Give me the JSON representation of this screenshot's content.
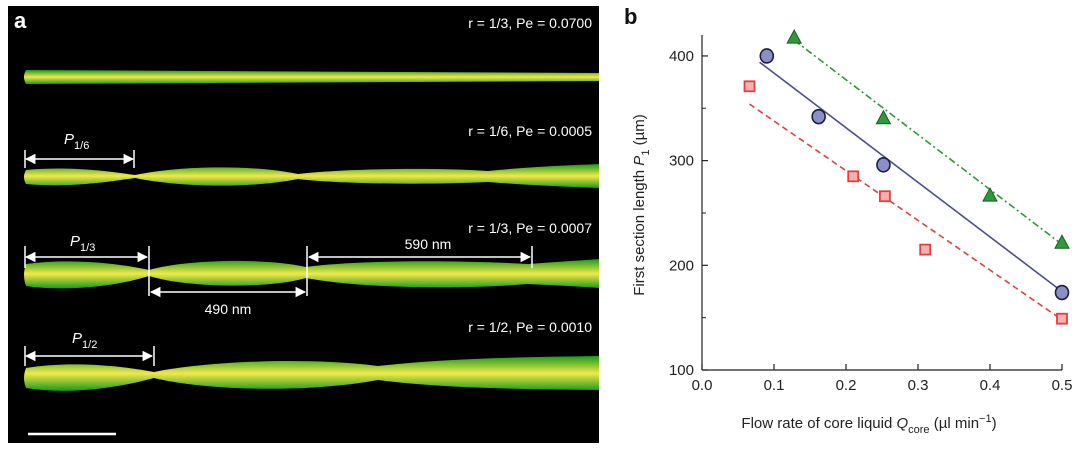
{
  "panel_a": {
    "label": "a",
    "rows": [
      {
        "param": "r = 1/3, Pe = 0.0700",
        "period_label": "",
        "period_sub": ""
      },
      {
        "param": "r = 1/6, Pe = 0.0005",
        "period_label": "P",
        "period_sub": "1/6"
      },
      {
        "param": "r = 1/3, Pe = 0.0007",
        "period_label": "P",
        "period_sub": "1/3"
      },
      {
        "param": "r = 1/2, Pe = 0.0010",
        "period_label": "P",
        "period_sub": "1/2"
      }
    ],
    "annotations": {
      "second_span": "490 nm",
      "third_span": "590 nm"
    },
    "colors": {
      "fiber_edge": "#1a9a1a",
      "fiber_core": "#f2e84a",
      "background": "#000000",
      "arrow": "#ffffff"
    }
  },
  "chart_data": {
    "panel_label": "b",
    "type": "scatter",
    "xlabel": "Flow rate of core liquid Q_core (µl min⁻¹)",
    "xlabel_parts": {
      "main": "Flow rate of core liquid ",
      "var": "Q",
      "sub": "core",
      "unit_open": " (µl min",
      "unit_sup": "−1",
      "unit_close": ")"
    },
    "ylabel": "First section length P_1 (µm)",
    "ylabel_parts": {
      "main": "First section length ",
      "var": "P",
      "sub": "1",
      "unit": " (µm)"
    },
    "xlim": [
      0.0,
      0.5
    ],
    "ylim": [
      100,
      420
    ],
    "xticks": [
      "0.0",
      "0.1",
      "0.2",
      "0.3",
      "0.4",
      "0.5"
    ],
    "yticks": [
      "100",
      "200",
      "300",
      "400"
    ],
    "series": [
      {
        "marker": "triangle",
        "color": "#2e9a3a",
        "line_style": "dash-dot",
        "x": [
          0.128,
          0.252,
          0.4,
          0.5
        ],
        "y": [
          418,
          341,
          267,
          222
        ],
        "fit": [
          [
            0.128,
            415
          ],
          [
            0.5,
            220
          ]
        ]
      },
      {
        "marker": "circle",
        "color": "#4a4f8c",
        "line_style": "solid",
        "x": [
          0.09,
          0.162,
          0.252,
          0.5
        ],
        "y": [
          400,
          342,
          296,
          174
        ],
        "fit": [
          [
            0.08,
            394
          ],
          [
            0.5,
            175
          ]
        ]
      },
      {
        "marker": "square",
        "color": "#e04040",
        "line_style": "dashed",
        "x": [
          0.066,
          0.21,
          0.254,
          0.31,
          0.5
        ],
        "y": [
          371,
          285,
          266,
          215,
          149
        ],
        "fit": [
          [
            0.066,
            354
          ],
          [
            0.5,
            148
          ]
        ]
      }
    ]
  }
}
